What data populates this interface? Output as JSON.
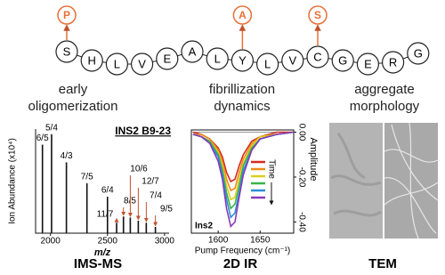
{
  "sequence": {
    "residues": [
      "S",
      "H",
      "L",
      "V",
      "E",
      "A",
      "L",
      "Y",
      "L",
      "V",
      "C",
      "G",
      "E",
      "R",
      "G"
    ],
    "modifications": [
      "P",
      "A",
      "S"
    ]
  },
  "section_labels": [
    [
      "early",
      "oligomerization"
    ],
    [
      "fibrillization",
      "dynamics"
    ],
    [
      "aggregate",
      "morphology"
    ]
  ],
  "panel_labels": [
    "IMS-MS",
    "2D IR",
    "TEM"
  ],
  "chart_data": [
    {
      "type": "bar",
      "title": "INS2 B9-23",
      "xlabel": "m/z",
      "ylabel": "Ion Abundance (x10⁴)",
      "x": [
        1930,
        2010,
        2140,
        2320,
        2500,
        2580,
        2640,
        2700,
        2770,
        2840,
        2920
      ],
      "values": [
        8.5,
        9.5,
        6.8,
        4.8,
        3.5,
        1.0,
        1.6,
        1.5,
        1.2,
        1.0,
        0.6
      ],
      "peak_labels": [
        "6/5",
        "5/4",
        "4/3",
        "7/5",
        "6/4",
        "11/7",
        "8/5",
        "10/6",
        "12/7",
        "7/4",
        "9/5"
      ],
      "color": "#111111",
      "annotation_color": "#c0522e",
      "xlim": [
        1870,
        3040
      ],
      "xticks": [
        2000,
        2500,
        3000
      ],
      "ylim": [
        0,
        10
      ]
    },
    {
      "type": "line",
      "xlabel": "Pump Frequency (cm⁻¹)",
      "ylabel": "Amplitude",
      "annotation": "Ins2",
      "legend_title": "Time",
      "x": [
        1570,
        1580,
        1590,
        1600,
        1605,
        1610,
        1615,
        1620,
        1625,
        1630,
        1640,
        1650,
        1670,
        1690
      ],
      "series": [
        {
          "color": "#d62a1e",
          "values": [
            0,
            -0.01,
            -0.03,
            -0.07,
            -0.11,
            -0.18,
            -0.22,
            -0.21,
            -0.15,
            -0.1,
            -0.04,
            -0.02,
            0,
            0
          ]
        },
        {
          "color": "#ef8a1c",
          "values": [
            -0.01,
            -0.01,
            -0.03,
            -0.08,
            -0.13,
            -0.21,
            -0.26,
            -0.25,
            -0.18,
            -0.12,
            -0.05,
            -0.02,
            -0.01,
            0
          ]
        },
        {
          "color": "#d9cf1d",
          "values": [
            -0.01,
            -0.02,
            -0.04,
            -0.09,
            -0.15,
            -0.24,
            -0.3,
            -0.29,
            -0.21,
            -0.14,
            -0.06,
            -0.02,
            -0.01,
            0
          ]
        },
        {
          "color": "#3bb34a",
          "values": [
            -0.01,
            -0.02,
            -0.04,
            -0.1,
            -0.17,
            -0.27,
            -0.34,
            -0.32,
            -0.24,
            -0.15,
            -0.07,
            -0.03,
            -0.01,
            0
          ]
        },
        {
          "color": "#2a8fd8",
          "values": [
            -0.01,
            -0.02,
            -0.05,
            -0.11,
            -0.19,
            -0.3,
            -0.38,
            -0.36,
            -0.27,
            -0.17,
            -0.08,
            -0.03,
            -0.01,
            0
          ]
        },
        {
          "color": "#8a3ab8",
          "values": [
            -0.01,
            -0.02,
            -0.05,
            -0.13,
            -0.21,
            -0.34,
            -0.42,
            -0.4,
            -0.29,
            -0.19,
            -0.08,
            -0.03,
            -0.01,
            0
          ]
        }
      ],
      "xlim": [
        1568,
        1690
      ],
      "xticks": [
        1600,
        1650
      ],
      "ylim": [
        -0.45,
        0.01
      ],
      "yticks": [
        {
          "value": 0,
          "label": "0.00"
        },
        {
          "value": -0.2,
          "label": "-0.20"
        },
        {
          "value": -0.4,
          "label": "-0.40"
        }
      ],
      "y_axis_side": "right"
    }
  ]
}
